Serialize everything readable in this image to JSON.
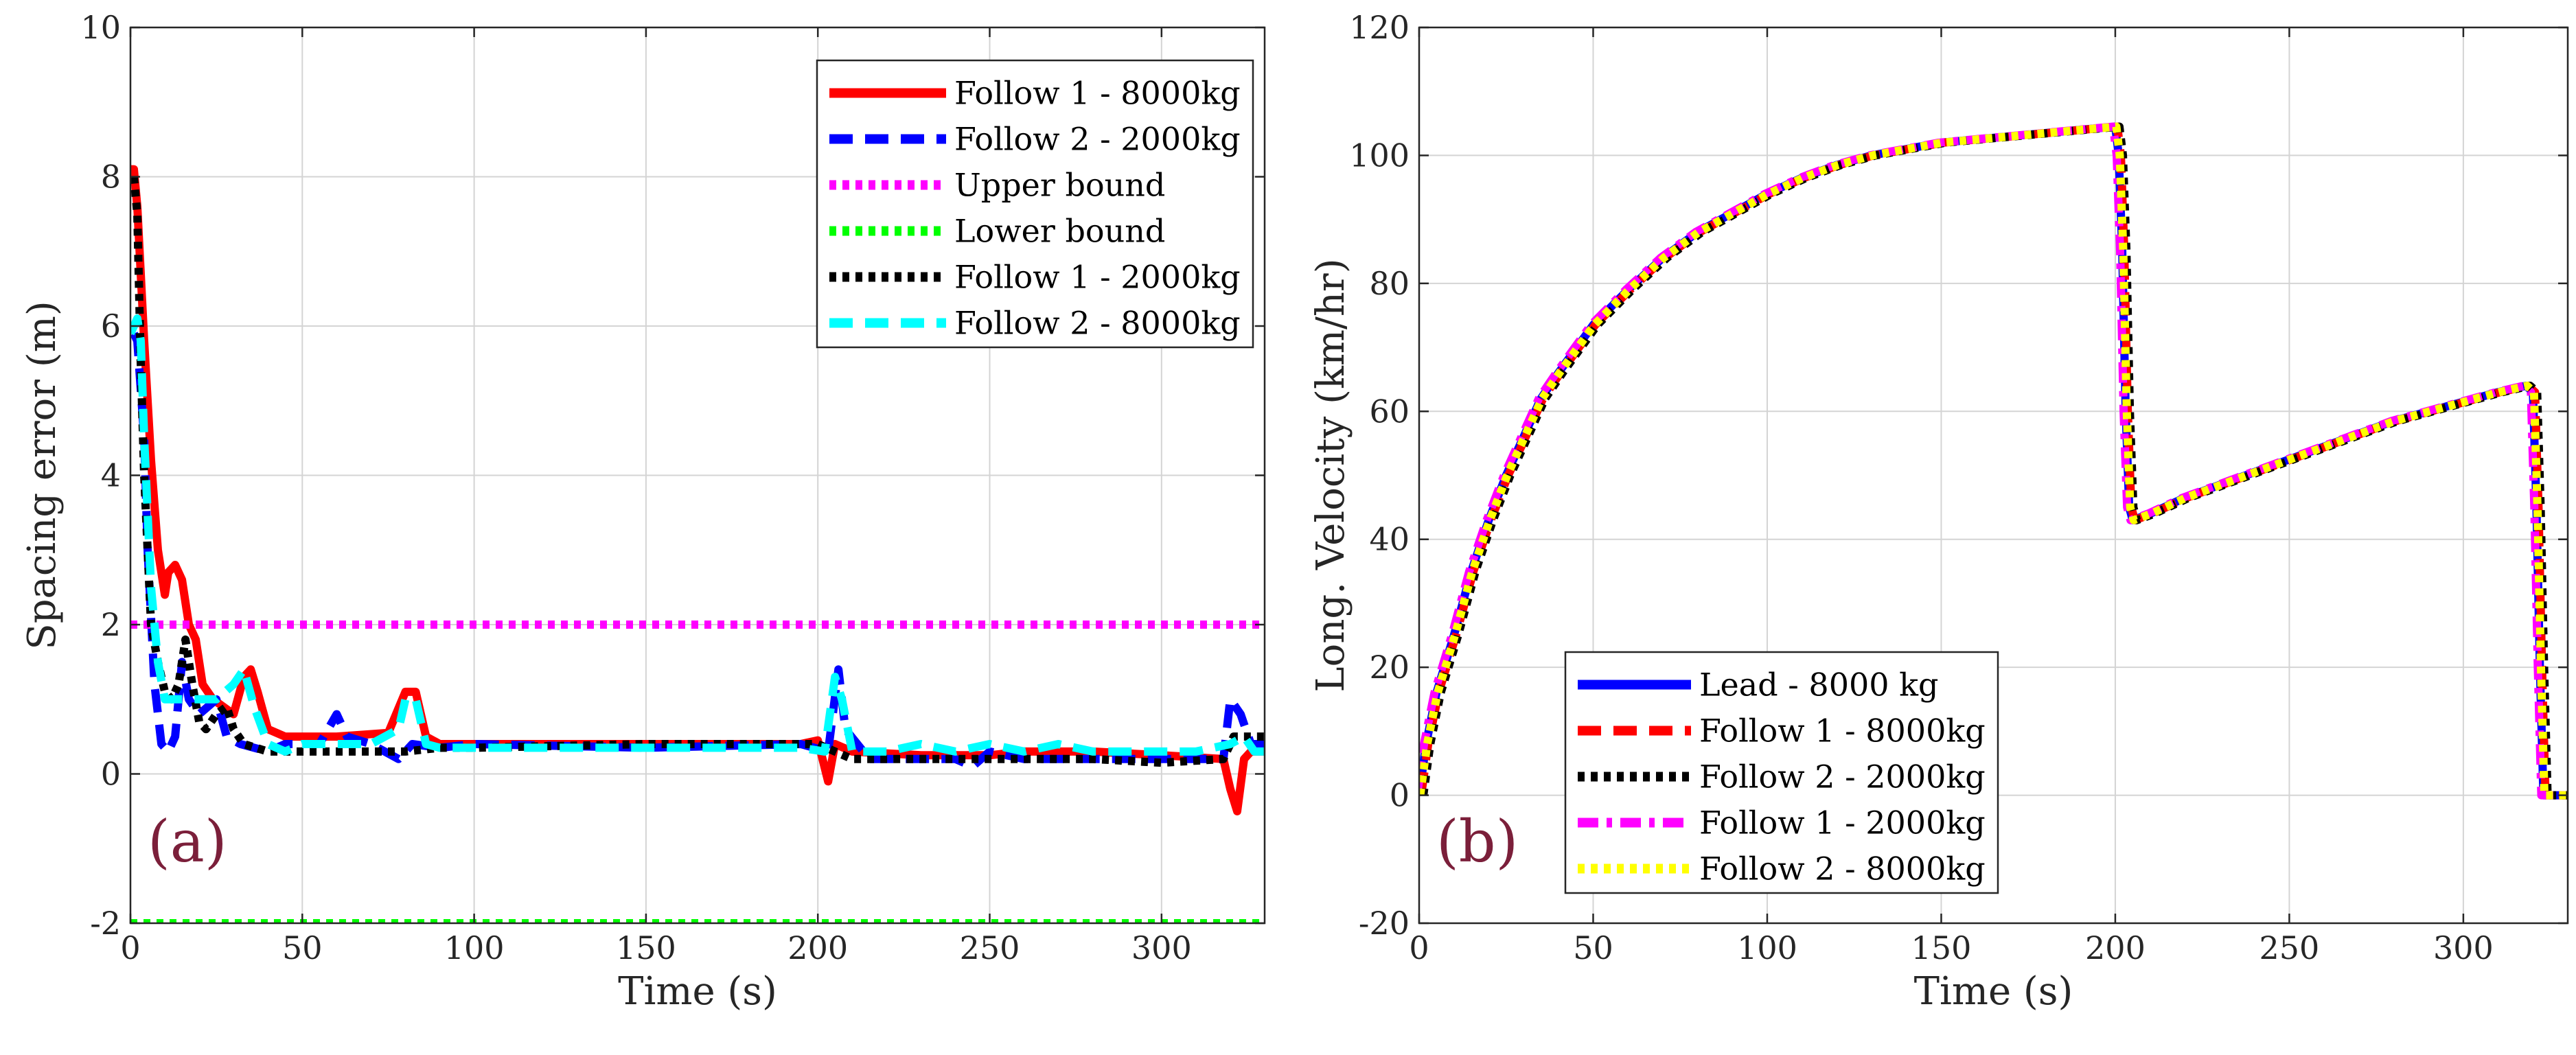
{
  "chart_data": [
    {
      "type": "line",
      "panel_label": "(a)",
      "xlabel": "Time (s)",
      "ylabel": "Spacing error (m)",
      "xlim": [
        0,
        330
      ],
      "ylim": [
        -2,
        10
      ],
      "xticks": [
        0,
        50,
        100,
        150,
        200,
        250,
        300
      ],
      "yticks": [
        -2,
        0,
        2,
        4,
        6,
        8,
        10
      ],
      "grid": true,
      "legend_position": "top-right",
      "series": [
        {
          "name": "Follow 1 - 8000kg",
          "color": "#ff0000",
          "style": "solid",
          "points": [
            [
              0,
              8.1
            ],
            [
              1,
              8.1
            ],
            [
              2,
              7.6
            ],
            [
              4,
              5.8
            ],
            [
              6,
              4.2
            ],
            [
              8,
              3.0
            ],
            [
              10,
              2.4
            ],
            [
              11,
              2.7
            ],
            [
              13,
              2.8
            ],
            [
              15,
              2.6
            ],
            [
              17,
              2.0
            ],
            [
              19,
              1.8
            ],
            [
              21,
              1.2
            ],
            [
              24,
              1.0
            ],
            [
              27,
              0.9
            ],
            [
              30,
              0.8
            ],
            [
              33,
              1.3
            ],
            [
              35,
              1.4
            ],
            [
              37,
              1.1
            ],
            [
              40,
              0.6
            ],
            [
              45,
              0.5
            ],
            [
              60,
              0.5
            ],
            [
              75,
              0.55
            ],
            [
              80,
              1.1
            ],
            [
              83,
              1.1
            ],
            [
              86,
              0.5
            ],
            [
              90,
              0.4
            ],
            [
              100,
              0.4
            ],
            [
              150,
              0.4
            ],
            [
              195,
              0.4
            ],
            [
              200,
              0.45
            ],
            [
              203,
              -0.1
            ],
            [
              205,
              0.4
            ],
            [
              210,
              0.3
            ],
            [
              230,
              0.25
            ],
            [
              250,
              0.25
            ],
            [
              260,
              0.3
            ],
            [
              280,
              0.3
            ],
            [
              300,
              0.25
            ],
            [
              318,
              0.2
            ],
            [
              320,
              -0.2
            ],
            [
              322,
              -0.5
            ],
            [
              324,
              0.2
            ],
            [
              326,
              0.3
            ],
            [
              330,
              0.3
            ]
          ]
        },
        {
          "name": "Follow 2 - 2000kg",
          "color": "#0000ff",
          "style": "dashed",
          "points": [
            [
              1,
              5.9
            ],
            [
              2,
              5.8
            ],
            [
              4,
              4.5
            ],
            [
              5,
              3.0
            ],
            [
              7,
              1.2
            ],
            [
              9,
              0.4
            ],
            [
              11,
              0.3
            ],
            [
              13,
              0.5
            ],
            [
              15,
              1.5
            ],
            [
              17,
              1.0
            ],
            [
              20,
              0.8
            ],
            [
              25,
              1.0
            ],
            [
              28,
              0.5
            ],
            [
              32,
              0.4
            ],
            [
              40,
              0.3
            ],
            [
              45,
              0.4
            ],
            [
              55,
              0.4
            ],
            [
              60,
              0.8
            ],
            [
              63,
              0.5
            ],
            [
              70,
              0.4
            ],
            [
              78,
              0.2
            ],
            [
              82,
              0.4
            ],
            [
              90,
              0.35
            ],
            [
              100,
              0.4
            ],
            [
              150,
              0.35
            ],
            [
              195,
              0.4
            ],
            [
              203,
              0.3
            ],
            [
              206,
              1.4
            ],
            [
              208,
              0.6
            ],
            [
              215,
              0.2
            ],
            [
              240,
              0.2
            ],
            [
              245,
              0.1
            ],
            [
              250,
              0.3
            ],
            [
              260,
              0.2
            ],
            [
              280,
              0.2
            ],
            [
              300,
              0.2
            ],
            [
              318,
              0.2
            ],
            [
              320,
              1.0
            ],
            [
              323,
              0.8
            ],
            [
              326,
              0.4
            ],
            [
              330,
              0.4
            ]
          ]
        },
        {
          "name": "Upper bound",
          "color": "#ff00ff",
          "style": "dotted",
          "points": [
            [
              0,
              2
            ],
            [
              330,
              2
            ]
          ]
        },
        {
          "name": "Lower bound",
          "color": "#00ff00",
          "style": "dotted",
          "points": [
            [
              0,
              -2
            ],
            [
              330,
              -2
            ]
          ]
        },
        {
          "name": "Follow 1 - 2000kg",
          "color": "#000000",
          "style": "dotted",
          "points": [
            [
              1,
              8.0
            ],
            [
              2,
              7.5
            ],
            [
              3,
              5.5
            ],
            [
              4,
              4.0
            ],
            [
              5,
              3.0
            ],
            [
              6,
              2.0
            ],
            [
              8,
              1.5
            ],
            [
              10,
              1.1
            ],
            [
              12,
              1.0
            ],
            [
              14,
              1.2
            ],
            [
              16,
              1.8
            ],
            [
              18,
              1.2
            ],
            [
              20,
              0.7
            ],
            [
              22,
              0.6
            ],
            [
              25,
              0.8
            ],
            [
              28,
              0.9
            ],
            [
              30,
              0.6
            ],
            [
              33,
              0.4
            ],
            [
              40,
              0.3
            ],
            [
              50,
              0.3
            ],
            [
              70,
              0.3
            ],
            [
              80,
              0.3
            ],
            [
              90,
              0.35
            ],
            [
              100,
              0.35
            ],
            [
              150,
              0.4
            ],
            [
              195,
              0.4
            ],
            [
              200,
              0.4
            ],
            [
              205,
              0.3
            ],
            [
              210,
              0.2
            ],
            [
              230,
              0.2
            ],
            [
              250,
              0.2
            ],
            [
              280,
              0.2
            ],
            [
              300,
              0.15
            ],
            [
              318,
              0.2
            ],
            [
              321,
              0.5
            ],
            [
              325,
              0.5
            ],
            [
              330,
              0.5
            ]
          ]
        },
        {
          "name": "Follow 2 - 8000kg",
          "color": "#00ffff",
          "style": "dashed",
          "points": [
            [
              0,
              5.9
            ],
            [
              1,
              6.0
            ],
            [
              2,
              6.1
            ],
            [
              3,
              5.8
            ],
            [
              4,
              4.5
            ],
            [
              5,
              3.5
            ],
            [
              6,
              2.5
            ],
            [
              8,
              1.5
            ],
            [
              10,
              1.0
            ],
            [
              15,
              1.0
            ],
            [
              20,
              1.0
            ],
            [
              25,
              1.0
            ],
            [
              30,
              1.2
            ],
            [
              33,
              1.4
            ],
            [
              36,
              0.9
            ],
            [
              40,
              0.4
            ],
            [
              45,
              0.3
            ],
            [
              50,
              0.4
            ],
            [
              60,
              0.4
            ],
            [
              70,
              0.4
            ],
            [
              78,
              0.6
            ],
            [
              80,
              1.0
            ],
            [
              83,
              1.0
            ],
            [
              86,
              0.4
            ],
            [
              90,
              0.35
            ],
            [
              100,
              0.35
            ],
            [
              150,
              0.35
            ],
            [
              195,
              0.35
            ],
            [
              202,
              0.3
            ],
            [
              205,
              1.3
            ],
            [
              207,
              1.0
            ],
            [
              210,
              0.3
            ],
            [
              220,
              0.3
            ],
            [
              230,
              0.4
            ],
            [
              240,
              0.3
            ],
            [
              250,
              0.4
            ],
            [
              260,
              0.3
            ],
            [
              270,
              0.4
            ],
            [
              280,
              0.3
            ],
            [
              290,
              0.3
            ],
            [
              300,
              0.3
            ],
            [
              310,
              0.3
            ],
            [
              320,
              0.4
            ],
            [
              324,
              0.5
            ],
            [
              327,
              0.3
            ],
            [
              330,
              0.3
            ]
          ]
        }
      ]
    },
    {
      "type": "line",
      "panel_label": "(b)",
      "xlabel": "Time (s)",
      "ylabel": "Long. Velocity (km/hr)",
      "xlim": [
        0,
        330
      ],
      "ylim": [
        -20,
        120
      ],
      "xticks": [
        0,
        50,
        100,
        150,
        200,
        250,
        300
      ],
      "yticks": [
        -20,
        0,
        20,
        40,
        60,
        80,
        100,
        120
      ],
      "grid": true,
      "legend_position": "bottom-left",
      "series": [
        {
          "name": "Lead - 8000 kg",
          "color": "#0000ff",
          "style": "solid"
        },
        {
          "name": "Follow 1 - 8000kg",
          "color": "#ff0000",
          "style": "dashed"
        },
        {
          "name": "Follow 2 - 2000kg",
          "color": "#000000",
          "style": "dotted"
        },
        {
          "name": "Follow 1 - 2000kg",
          "color": "#ff00ff",
          "style": "dashdot"
        },
        {
          "name": "Follow 2 - 8000kg",
          "color": "#ffff00",
          "style": "dotted"
        }
      ],
      "curve": [
        [
          0,
          0
        ],
        [
          2,
          8
        ],
        [
          5,
          16
        ],
        [
          10,
          25
        ],
        [
          15,
          35
        ],
        [
          20,
          43
        ],
        [
          25,
          50
        ],
        [
          30,
          56
        ],
        [
          35,
          62
        ],
        [
          40,
          66
        ],
        [
          50,
          73.5
        ],
        [
          60,
          79
        ],
        [
          70,
          84
        ],
        [
          80,
          88
        ],
        [
          90,
          91
        ],
        [
          100,
          94
        ],
        [
          110,
          96.5
        ],
        [
          120,
          98.5
        ],
        [
          130,
          100
        ],
        [
          140,
          101
        ],
        [
          150,
          102
        ],
        [
          160,
          102.5
        ],
        [
          170,
          103
        ],
        [
          180,
          103.5
        ],
        [
          190,
          104
        ],
        [
          200,
          104.5
        ],
        [
          201,
          100
        ],
        [
          202,
          85
        ],
        [
          203,
          60
        ],
        [
          204,
          45
        ],
        [
          205,
          43
        ],
        [
          210,
          44
        ],
        [
          220,
          46.5
        ],
        [
          230,
          48.5
        ],
        [
          240,
          50.5
        ],
        [
          250,
          52.5
        ],
        [
          260,
          54.5
        ],
        [
          270,
          56.5
        ],
        [
          280,
          58.5
        ],
        [
          290,
          60
        ],
        [
          300,
          61.5
        ],
        [
          310,
          63
        ],
        [
          318,
          64
        ],
        [
          320,
          63
        ],
        [
          321,
          45
        ],
        [
          322,
          20
        ],
        [
          323,
          0
        ],
        [
          325,
          0
        ],
        [
          330,
          0
        ]
      ]
    }
  ]
}
